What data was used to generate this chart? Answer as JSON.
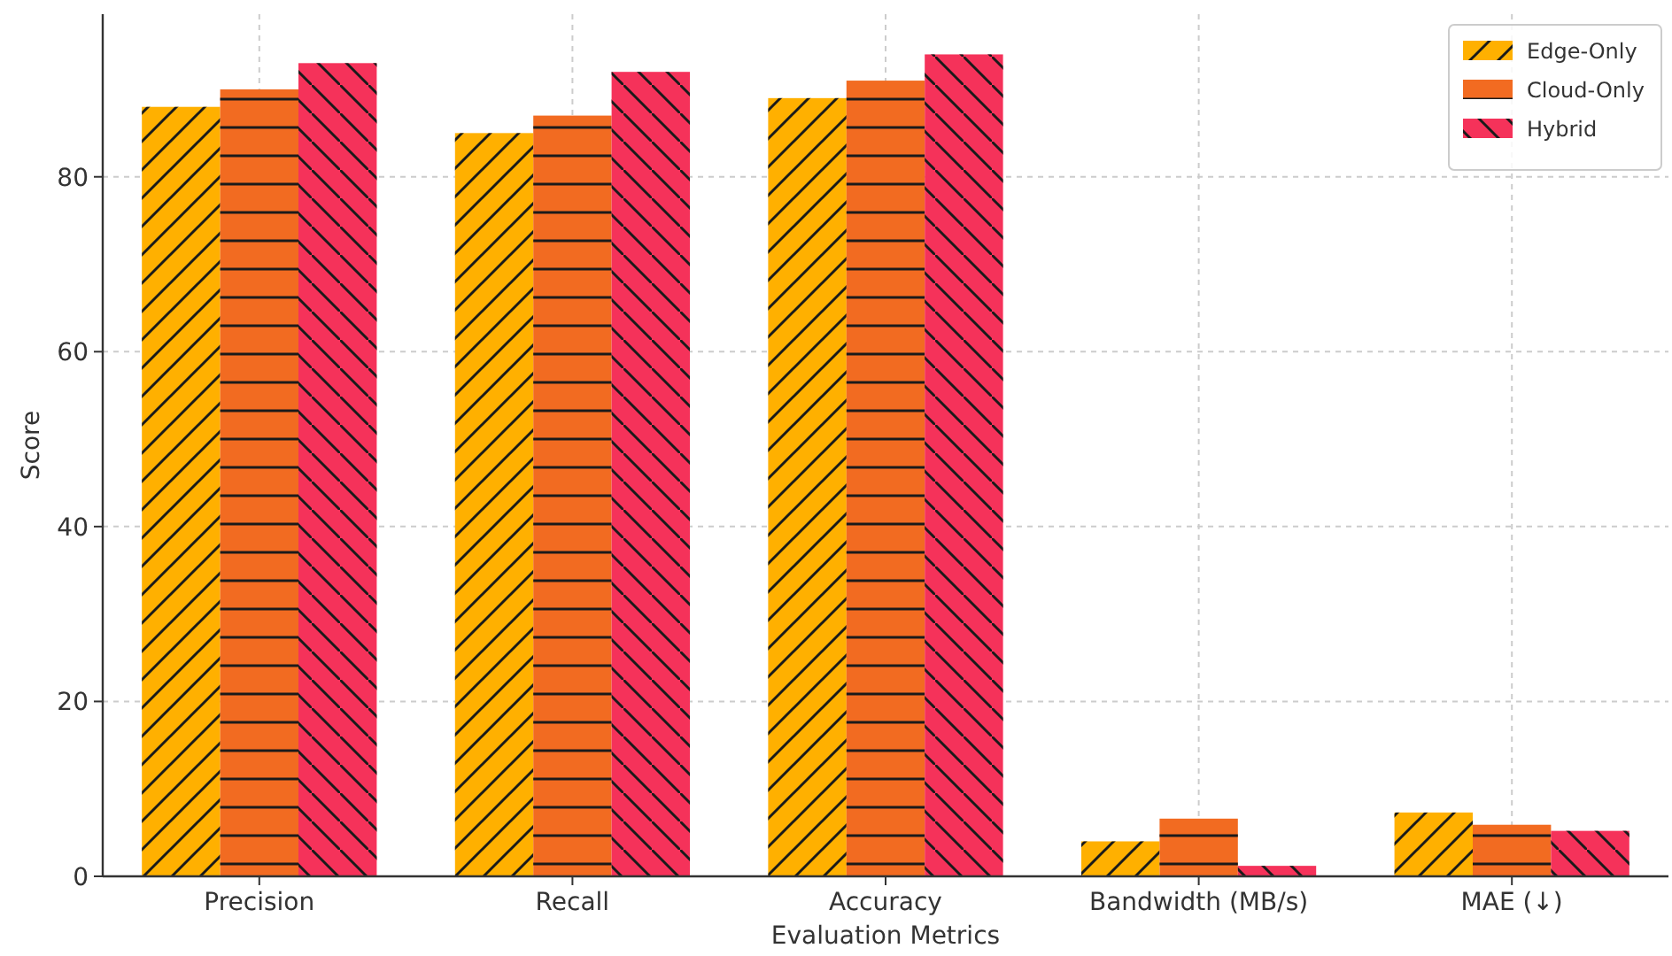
{
  "chart_data": {
    "type": "bar",
    "xlabel": "Evaluation Metrics",
    "ylabel": "Score",
    "categories": [
      "Precision",
      "Recall",
      "Accuracy",
      "Bandwidth (MB/s)",
      "MAE (↓)"
    ],
    "series": [
      {
        "name": "Edge-Only",
        "color": "#ffb000",
        "values": [
          88,
          85,
          89,
          4,
          7.3
        ]
      },
      {
        "name": "Cloud-Only",
        "color": "#f26b21",
        "values": [
          90,
          87,
          91,
          6.6,
          5.9
        ]
      },
      {
        "name": "Hybrid",
        "color": "#f5325a",
        "values": [
          93,
          92,
          94,
          1.2,
          5.2
        ]
      }
    ],
    "ylim": [
      0,
      98.6
    ],
    "yticks": [
      0,
      20,
      40,
      60,
      80
    ],
    "grid": true,
    "legend": "top right"
  }
}
